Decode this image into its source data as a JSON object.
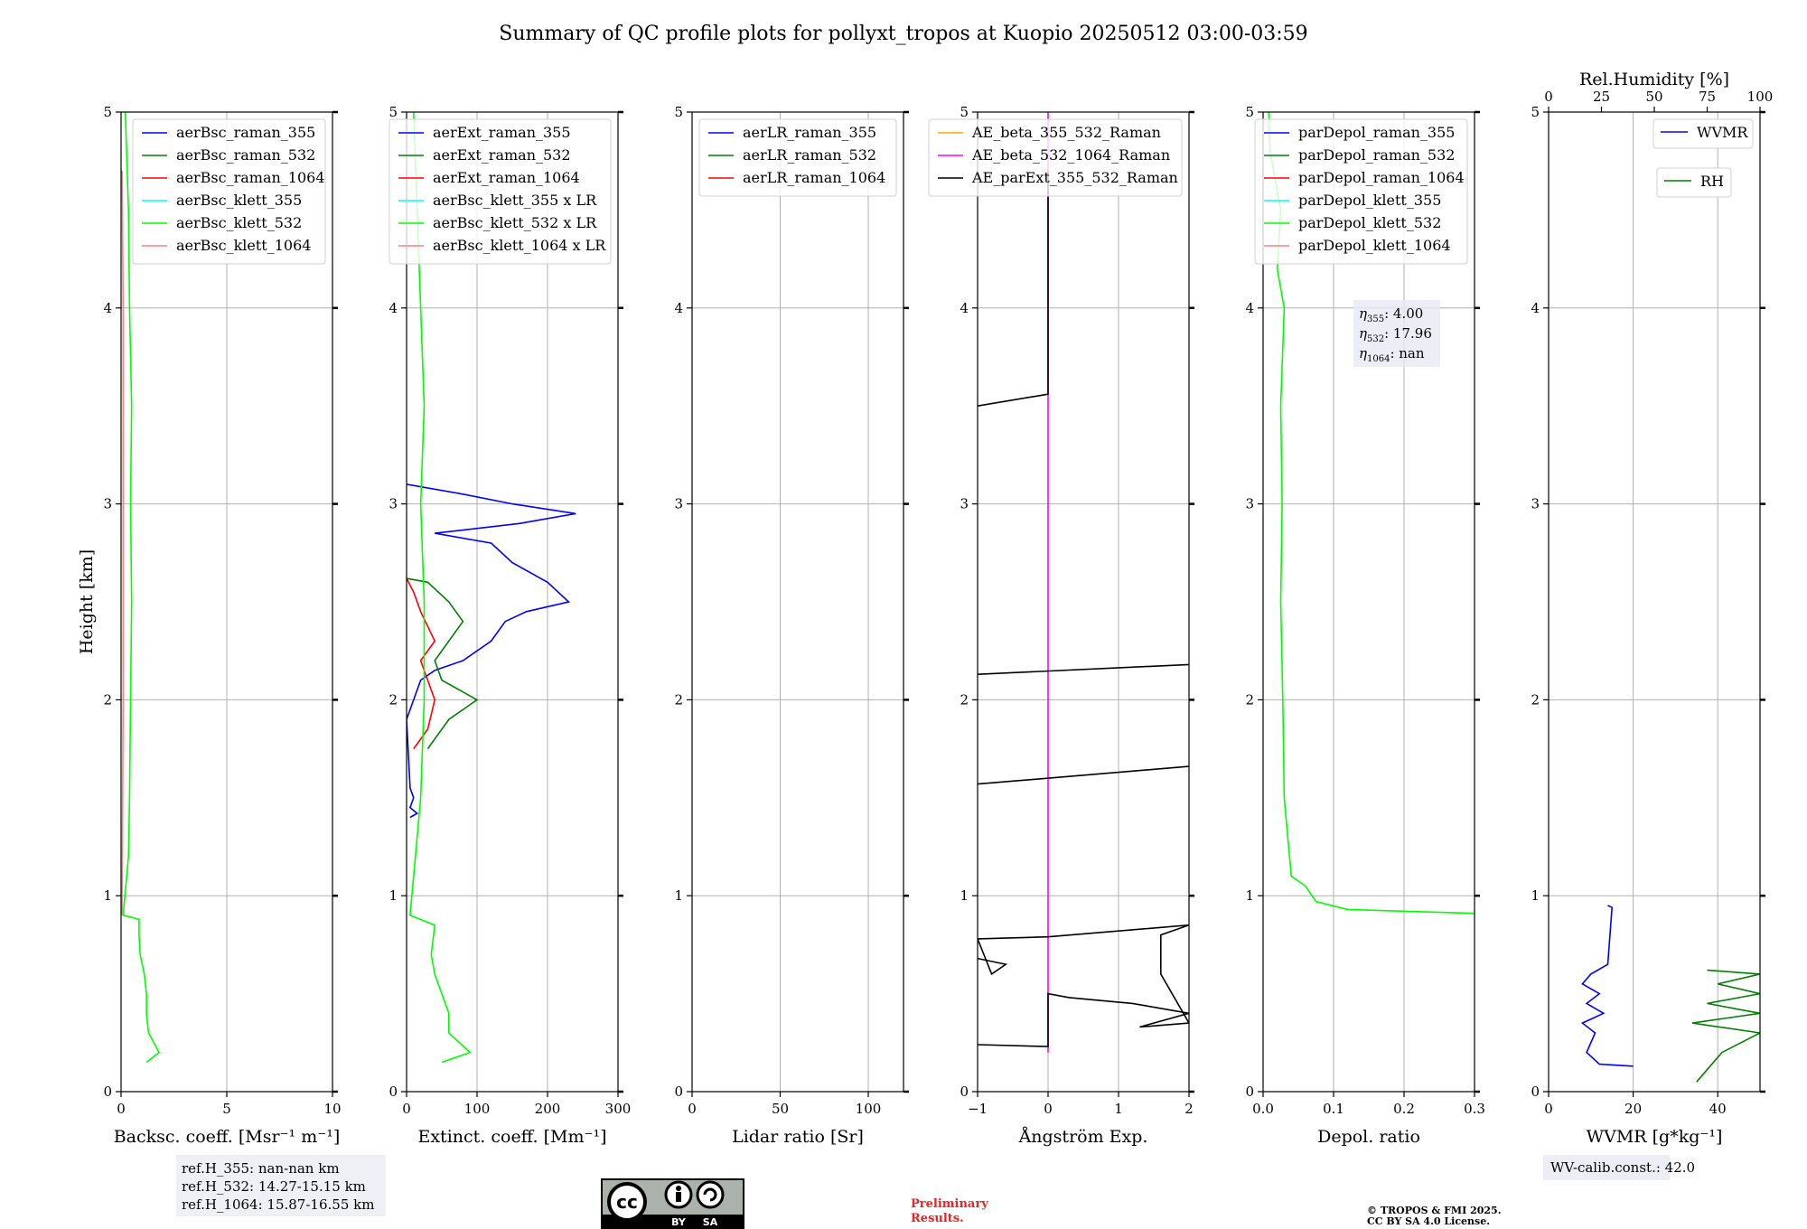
{
  "title": "Summary of QC profile plots for pollyxt_tropos at Kuopio 20250512 03:00-03:59",
  "chart_data": [
    {
      "type": "line",
      "xlabel": "Backsc. coeff. [Msr⁻¹ m⁻¹]",
      "ylabel": "Height [km]",
      "xlim": [
        0,
        10
      ],
      "ylim": [
        0,
        5
      ],
      "xticks": [
        "0",
        "5",
        "10"
      ],
      "yticks": [
        "0",
        "1",
        "2",
        "3",
        "4",
        "5"
      ],
      "grid": true,
      "legend_position": "top-right",
      "series": [
        {
          "name": "aerBsc_raman_355",
          "color": "#0000ff",
          "points": []
        },
        {
          "name": "aerBsc_raman_532",
          "color": "#008000",
          "points": []
        },
        {
          "name": "aerBsc_raman_1064",
          "color": "#ff0000",
          "points": []
        },
        {
          "name": "aerBsc_klett_355",
          "color": "#00ffff",
          "points": []
        },
        {
          "name": "aerBsc_klett_532",
          "color": "#00ff00",
          "points": [
            [
              1.2,
              0.15
            ],
            [
              1.8,
              0.2
            ],
            [
              1.3,
              0.3
            ],
            [
              1.2,
              0.4
            ],
            [
              1.2,
              0.5
            ],
            [
              1.1,
              0.6
            ],
            [
              0.9,
              0.7
            ],
            [
              0.85,
              0.8
            ],
            [
              0.85,
              0.88
            ],
            [
              0.1,
              0.9
            ],
            [
              0.35,
              1.2
            ],
            [
              0.4,
              1.5
            ],
            [
              0.45,
              2.0
            ],
            [
              0.5,
              2.5
            ],
            [
              0.45,
              3.0
            ],
            [
              0.5,
              3.5
            ],
            [
              0.4,
              4.0
            ],
            [
              0.35,
              4.5
            ],
            [
              0.2,
              5.0
            ]
          ]
        },
        {
          "name": "aerBsc_klett_1064",
          "color": "#ff8080",
          "points": [
            [
              0.05,
              0.9
            ],
            [
              0.1,
              2.0
            ],
            [
              0.1,
              3.0
            ],
            [
              0.1,
              4.0
            ],
            [
              0.05,
              4.7
            ]
          ]
        }
      ]
    },
    {
      "type": "line",
      "xlabel": "Extinct. coeff. [Mm⁻¹]",
      "xlim": [
        0,
        300
      ],
      "ylim": [
        0,
        5
      ],
      "xticks": [
        "0",
        "100",
        "200",
        "300"
      ],
      "yticks": [
        "0",
        "1",
        "2",
        "3",
        "4",
        "5"
      ],
      "grid": true,
      "legend_position": "top-right",
      "series": [
        {
          "name": "aerExt_raman_355",
          "color": "#0000ff",
          "points": [
            [
              5,
              1.4
            ],
            [
              15,
              1.42
            ],
            [
              5,
              1.45
            ],
            [
              10,
              1.5
            ],
            [
              5,
              1.55
            ],
            [
              0,
              1.9
            ],
            [
              10,
              2.0
            ],
            [
              20,
              2.1
            ],
            [
              40,
              2.15
            ],
            [
              80,
              2.2
            ],
            [
              120,
              2.3
            ],
            [
              140,
              2.4
            ],
            [
              170,
              2.45
            ],
            [
              230,
              2.5
            ],
            [
              200,
              2.6
            ],
            [
              150,
              2.7
            ],
            [
              120,
              2.8
            ],
            [
              40,
              2.85
            ],
            [
              160,
              2.9
            ],
            [
              240,
              2.95
            ],
            [
              150,
              3.0
            ],
            [
              80,
              3.05
            ],
            [
              0,
              3.1
            ]
          ]
        },
        {
          "name": "aerExt_raman_532",
          "color": "#008000",
          "points": [
            [
              30,
              1.75
            ],
            [
              60,
              1.9
            ],
            [
              100,
              2.0
            ],
            [
              50,
              2.1
            ],
            [
              40,
              2.2
            ],
            [
              80,
              2.4
            ],
            [
              60,
              2.5
            ],
            [
              30,
              2.6
            ],
            [
              0,
              2.62
            ]
          ]
        },
        {
          "name": "aerExt_raman_1064",
          "color": "#ff0000",
          "points": [
            [
              10,
              1.75
            ],
            [
              30,
              1.85
            ],
            [
              40,
              2.0
            ],
            [
              30,
              2.1
            ],
            [
              20,
              2.2
            ],
            [
              40,
              2.3
            ],
            [
              20,
              2.45
            ],
            [
              10,
              2.55
            ],
            [
              0,
              2.62
            ]
          ]
        },
        {
          "name": "aerBsc_klett_355 x LR",
          "color": "#00ffff",
          "points": []
        },
        {
          "name": "aerBsc_klett_532 x LR",
          "color": "#00ff00",
          "points": [
            [
              50,
              0.15
            ],
            [
              90,
              0.2
            ],
            [
              60,
              0.3
            ],
            [
              60,
              0.4
            ],
            [
              50,
              0.5
            ],
            [
              40,
              0.6
            ],
            [
              35,
              0.7
            ],
            [
              40,
              0.85
            ],
            [
              5,
              0.9
            ],
            [
              20,
              1.5
            ],
            [
              25,
              2.0
            ],
            [
              25,
              2.5
            ],
            [
              20,
              3.0
            ],
            [
              25,
              3.5
            ],
            [
              20,
              4.0
            ],
            [
              15,
              4.5
            ],
            [
              10,
              5.0
            ]
          ]
        },
        {
          "name": "aerBsc_klett_1064 x LR",
          "color": "#ff8080",
          "points": []
        }
      ]
    },
    {
      "type": "line",
      "xlabel": "Lidar ratio [Sr]",
      "xlim": [
        0,
        120
      ],
      "ylim": [
        0,
        5
      ],
      "xticks": [
        "0",
        "50",
        "100"
      ],
      "yticks": [
        "0",
        "1",
        "2",
        "3",
        "4",
        "5"
      ],
      "grid": true,
      "legend_position": "top-right",
      "series": [
        {
          "name": "aerLR_raman_355",
          "color": "#0000ff",
          "points": []
        },
        {
          "name": "aerLR_raman_532",
          "color": "#008000",
          "points": []
        },
        {
          "name": "aerLR_raman_1064",
          "color": "#ff0000",
          "points": []
        }
      ]
    },
    {
      "type": "line",
      "xlabel": "Ångström Exp.",
      "xlim": [
        -1,
        2
      ],
      "ylim": [
        0,
        5
      ],
      "xticks": [
        "−1",
        "0",
        "1",
        "2"
      ],
      "yticks": [
        "0",
        "1",
        "2",
        "3",
        "4",
        "5"
      ],
      "grid": true,
      "legend_position": "top-right",
      "series": [
        {
          "name": "AE_beta_355_532_Raman",
          "color": "#ffa500",
          "points": []
        },
        {
          "name": "AE_beta_532_1064_Raman",
          "color": "#ff00ff",
          "points": [
            [
              0,
              0.2
            ],
            [
              0,
              5.0
            ]
          ]
        },
        {
          "name": "AE_parExt_355_532_Raman",
          "color": "#000000",
          "points": [
            [
              -1,
              0.24
            ],
            [
              0,
              0.23
            ],
            [
              0,
              0.5
            ],
            [
              0.3,
              0.48
            ],
            [
              1.2,
              0.45
            ],
            [
              2,
              0.4
            ],
            [
              1.3,
              0.33
            ],
            [
              2,
              0.35
            ],
            [
              1.6,
              0.6
            ],
            [
              1.6,
              0.8
            ],
            [
              2,
              0.85
            ],
            [
              0,
              0.79
            ],
            [
              -1,
              0.78
            ],
            [
              -0.8,
              0.6
            ],
            [
              -0.6,
              0.65
            ],
            [
              -1,
              0.68
            ]
          ]
        },
        {
          "name": "",
          "color": "#000000",
          "points": [
            [
              -1,
              1.57
            ],
            [
              2,
              1.66
            ]
          ]
        },
        {
          "name": "",
          "color": "#000000",
          "points": [
            [
              -1,
              2.13
            ],
            [
              2,
              2.18
            ]
          ]
        },
        {
          "name": "",
          "color": "#000000",
          "points": [
            [
              -1,
              3.5
            ],
            [
              0,
              3.56
            ],
            [
              0,
              4.7
            ]
          ]
        }
      ]
    },
    {
      "type": "line",
      "xlabel": "Depol. ratio",
      "xlim": [
        0,
        0.3
      ],
      "ylim": [
        0,
        5
      ],
      "xticks": [
        "0.0",
        "0.1",
        "0.2",
        "0.3"
      ],
      "yticks": [
        "0",
        "1",
        "2",
        "3",
        "4",
        "5"
      ],
      "grid": true,
      "legend_position": "top-right",
      "annotation": [
        {
          "sym": "η",
          "sub": "355",
          "val": ": 4.00"
        },
        {
          "sym": "η",
          "sub": "532",
          "val": ": 17.96"
        },
        {
          "sym": "η",
          "sub": "1064",
          "val": ": nan"
        }
      ],
      "series": [
        {
          "name": "parDepol_raman_355",
          "color": "#0000ff",
          "points": []
        },
        {
          "name": "parDepol_raman_532",
          "color": "#008000",
          "points": []
        },
        {
          "name": "parDepol_raman_1064",
          "color": "#ff0000",
          "points": []
        },
        {
          "name": "parDepol_klett_355",
          "color": "#00ffff",
          "points": []
        },
        {
          "name": "parDepol_klett_532",
          "color": "#00ff00",
          "points": [
            [
              0.3,
              0.91
            ],
            [
              0.12,
              0.93
            ],
            [
              0.075,
              0.97
            ],
            [
              0.06,
              1.05
            ],
            [
              0.04,
              1.1
            ],
            [
              0.035,
              1.3
            ],
            [
              0.03,
              1.5
            ],
            [
              0.028,
              2.0
            ],
            [
              0.025,
              2.5
            ],
            [
              0.027,
              3.0
            ],
            [
              0.025,
              3.5
            ],
            [
              0.03,
              4.0
            ],
            [
              0.02,
              4.2
            ],
            [
              0.025,
              4.5
            ],
            [
              0.01,
              4.8
            ],
            [
              0.008,
              5.0
            ]
          ]
        },
        {
          "name": "parDepol_klett_1064",
          "color": "#ff8080",
          "points": []
        }
      ]
    },
    {
      "type": "line",
      "xlabel": "WVMR [g*kg⁻¹]",
      "top_xlabel": "Rel.Humidity [%]",
      "xlim": [
        0,
        50
      ],
      "top_xlim": [
        0,
        100
      ],
      "ylim": [
        0,
        5
      ],
      "xticks": [
        "0",
        "20",
        "40"
      ],
      "top_xticks": [
        "0",
        "25",
        "50",
        "75",
        "100"
      ],
      "yticks": [
        "0",
        "1",
        "2",
        "3",
        "4",
        "5"
      ],
      "grid": true,
      "legend_position": "top-right",
      "annotation": "WV-calib.const.: 42.0",
      "series": [
        {
          "name": "WVMR",
          "color": "#0000ff",
          "points": [
            [
              20,
              0.13
            ],
            [
              12,
              0.14
            ],
            [
              9,
              0.2
            ],
            [
              11,
              0.3
            ],
            [
              8,
              0.35
            ],
            [
              13,
              0.4
            ],
            [
              9,
              0.45
            ],
            [
              12,
              0.5
            ],
            [
              8,
              0.55
            ],
            [
              10,
              0.6
            ],
            [
              14,
              0.65
            ],
            [
              15,
              0.94
            ],
            [
              14,
              0.95
            ]
          ]
        },
        {
          "name": "RH",
          "color": "#008000",
          "points": [
            [
              70,
              0.05
            ],
            [
              82,
              0.2
            ],
            [
              100,
              0.3
            ],
            [
              68,
              0.35
            ],
            [
              100,
              0.4
            ],
            [
              75,
              0.45
            ],
            [
              100,
              0.5
            ],
            [
              80,
              0.55
            ],
            [
              100,
              0.6
            ],
            [
              75,
              0.62
            ]
          ]
        }
      ]
    }
  ],
  "ref_heights": [
    "ref.H_355: nan-nan km",
    "ref.H_532: 14.27-15.15 km",
    "ref.H_1064: 15.87-16.55 km"
  ],
  "license_badge": {
    "cc": "cc",
    "by": "BY",
    "sa": "SA"
  },
  "preliminary": [
    "Preliminary",
    "Results."
  ],
  "copyright": [
    "© TROPOS & FMI 2025.",
    "CC BY SA 4.0 License."
  ]
}
